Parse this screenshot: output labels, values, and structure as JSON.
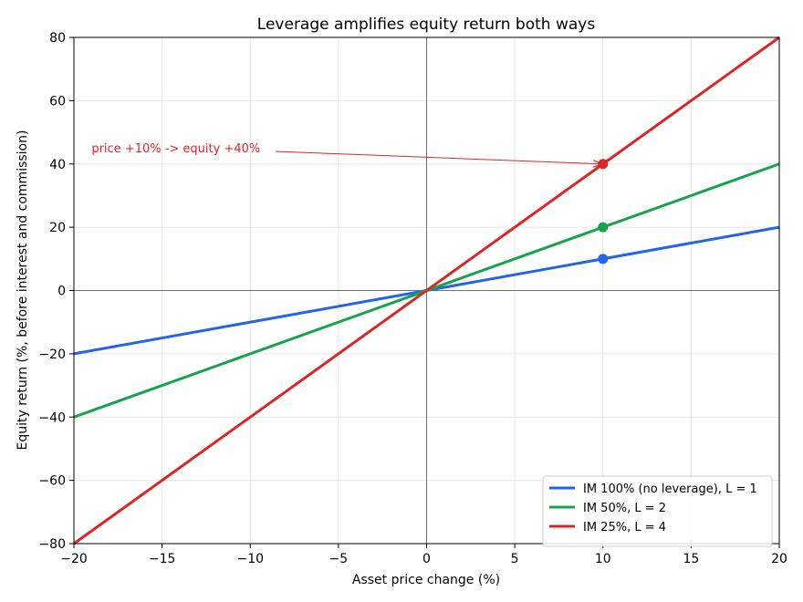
{
  "chart_data": {
    "type": "line",
    "title": "Leverage amplifies equity return both ways",
    "xlabel": "Asset price change (%)",
    "ylabel": "Equity return (%, before interest and commission)",
    "xlim": [
      -20,
      20
    ],
    "ylim": [
      -80,
      80
    ],
    "xticks": [
      -20,
      -15,
      -10,
      -5,
      0,
      5,
      10,
      15,
      20
    ],
    "yticks": [
      -80,
      -60,
      -40,
      -20,
      0,
      20,
      40,
      60,
      80
    ],
    "grid": true,
    "legend_position": "lower-right",
    "series": [
      {
        "name": "IM 100% (no leverage), L = 1",
        "color": "#2563eb",
        "x": [
          -20,
          20
        ],
        "y": [
          -20,
          20
        ],
        "marker": {
          "x": 10,
          "y": 10
        }
      },
      {
        "name": "IM 50%, L = 2",
        "color": "#16a34a",
        "x": [
          -20,
          20
        ],
        "y": [
          -40,
          40
        ],
        "marker": {
          "x": 10,
          "y": 20
        }
      },
      {
        "name": "IM 25%, L = 4",
        "color": "#dc2626",
        "x": [
          -20,
          20
        ],
        "y": [
          -80,
          80
        ],
        "marker": {
          "x": 10,
          "y": 40
        }
      }
    ],
    "annotation": {
      "text": "price +10% -> equity +40%",
      "color": "#dc2626",
      "text_x": -19,
      "text_y": 44,
      "arrow_to_x": 10,
      "arrow_to_y": 40
    }
  }
}
